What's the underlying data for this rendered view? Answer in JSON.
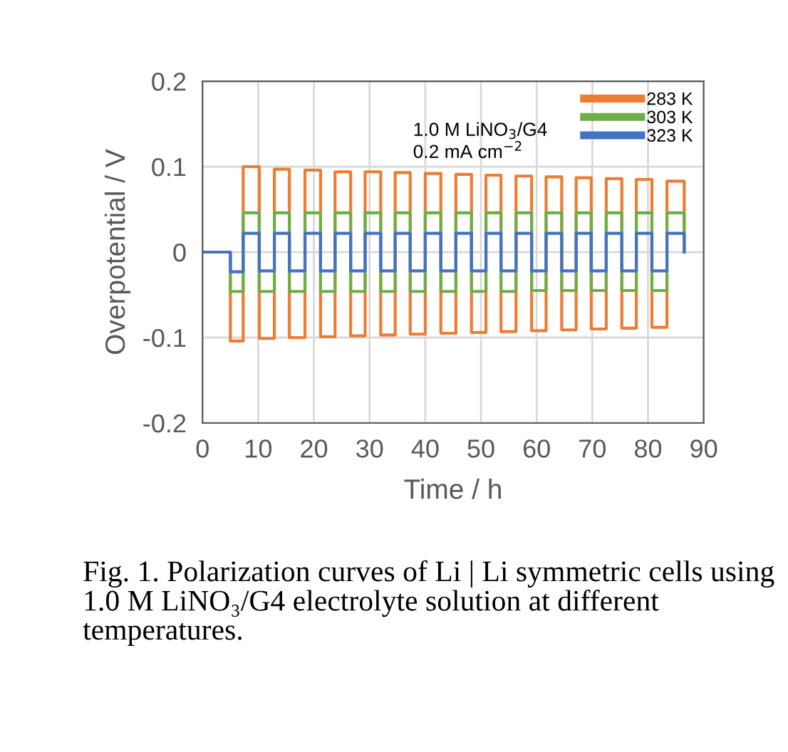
{
  "chart_data": {
    "type": "step",
    "xlabel": "Time / h",
    "ylabel": "Overpotential / V",
    "x": [
      0,
      5.0,
      7.3,
      10.2,
      12.9,
      15.6,
      18.4,
      21.2,
      23.8,
      26.6,
      29.2,
      32.0,
      34.6,
      37.3,
      40.0,
      42.8,
      45.5,
      48.3,
      50.9,
      53.6,
      56.3,
      59.1,
      61.7,
      64.5,
      67.1,
      69.8,
      72.5,
      75.3,
      77.9,
      80.7,
      83.4,
      86.5
    ],
    "series": [
      {
        "name": "283 K",
        "color": "#ed7d31",
        "values": [
          0,
          -0.104,
          0.1,
          -0.101,
          0.097,
          -0.1,
          0.096,
          -0.099,
          0.094,
          -0.098,
          0.094,
          -0.097,
          0.093,
          -0.096,
          0.092,
          -0.095,
          0.091,
          -0.094,
          0.09,
          -0.093,
          0.089,
          -0.092,
          0.088,
          -0.091,
          0.087,
          -0.09,
          0.086,
          -0.089,
          0.085,
          -0.088,
          0.083,
          0
        ]
      },
      {
        "name": "303 K",
        "color": "#70ad47",
        "values": [
          0,
          -0.046,
          0.046,
          -0.046,
          0.046,
          -0.046,
          0.046,
          -0.046,
          0.046,
          -0.046,
          0.046,
          -0.046,
          0.046,
          -0.046,
          0.046,
          -0.046,
          0.046,
          -0.046,
          0.046,
          -0.046,
          0.046,
          -0.045,
          0.046,
          -0.045,
          0.046,
          -0.045,
          0.046,
          -0.045,
          0.046,
          -0.045,
          0.046,
          0
        ]
      },
      {
        "name": "323 K",
        "color": "#4472c4",
        "values": [
          0,
          -0.023,
          0.022,
          -0.022,
          0.022,
          -0.022,
          0.022,
          -0.022,
          0.022,
          -0.022,
          0.022,
          -0.022,
          0.022,
          -0.022,
          0.022,
          -0.022,
          0.022,
          -0.022,
          0.022,
          -0.022,
          0.022,
          -0.022,
          0.022,
          -0.022,
          0.022,
          -0.022,
          0.022,
          -0.022,
          0.022,
          -0.022,
          0.022,
          0
        ]
      }
    ],
    "xlim": [
      0,
      90
    ],
    "xticks": [
      0,
      10,
      20,
      30,
      40,
      50,
      60,
      70,
      80,
      90
    ],
    "ylim": [
      -0.2,
      0.2
    ],
    "yticks": [
      -0.2,
      -0.1,
      0,
      0.1,
      0.2
    ],
    "grid": true,
    "legend": "top right",
    "line_style": "solid",
    "marker": "none",
    "annotations": [
      "1.0 M LiNO$_{3}$/G4",
      "0.2 mA cm$^{−2}$",
      "Fig. 1. Polarization curves of Li | Li symmetric cells using 1.0 M LiNO₃/G4 electrolyte solution at different temperatures."
    ]
  }
}
